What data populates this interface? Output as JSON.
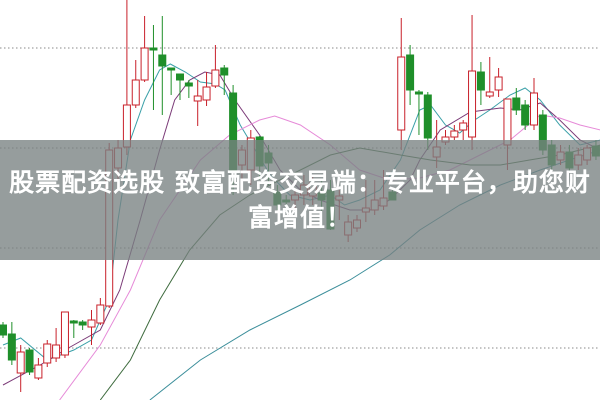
{
  "banner": {
    "title": "股票配资选股 致富配资交易端：专业平台，助您财富增值！"
  },
  "colors": {
    "up": "#c8202a",
    "down": "#1f8f2a",
    "grid": "#8a8a8a",
    "banner": "#7a8282"
  },
  "chart_data": {
    "type": "candlestick",
    "title": "",
    "xlabel": "",
    "ylabel": "",
    "grid": true,
    "legend": "none",
    "note_fields": "candles are [open, close, high, low]",
    "candles": [
      [
        7.5,
        6.5,
        7.8,
        6.2
      ],
      [
        6.6,
        4.0,
        7.8,
        3.5
      ],
      [
        2.7,
        4.8,
        5.5,
        0.8
      ],
      [
        5.0,
        2.8,
        5.2,
        2.5
      ],
      [
        2.2,
        3.5,
        4.2,
        2.0
      ],
      [
        3.7,
        5.6,
        6.0,
        3.3
      ],
      [
        4.2,
        5.5,
        7.2,
        3.8
      ],
      [
        4.5,
        8.8,
        8.8,
        4.2
      ],
      [
        7.9,
        7.7,
        8.0,
        6.2
      ],
      [
        7.8,
        7.5,
        8.0,
        7.0
      ],
      [
        7.3,
        8.0,
        9.0,
        5.5
      ],
      [
        7.7,
        9.5,
        10.2,
        7.5
      ],
      [
        9.4,
        25.0,
        25.7,
        9.2
      ],
      [
        23.2,
        25.2,
        26.0,
        22.0
      ],
      [
        25.3,
        29.5,
        40.0,
        24.5
      ],
      [
        29.5,
        32.0,
        34.0,
        29.2
      ],
      [
        32.0,
        35.2,
        38.4,
        31.8
      ],
      [
        35.2,
        35.0,
        37.5,
        29.0
      ],
      [
        34.5,
        33.4,
        38.4,
        28.5
      ],
      [
        33.2,
        33.0,
        33.2,
        30.5
      ],
      [
        32.6,
        32.0,
        32.6,
        30.0
      ],
      [
        31.7,
        31.4,
        32.0,
        30.2
      ],
      [
        29.9,
        30.4,
        32.0,
        27.4
      ],
      [
        30.0,
        31.3,
        32.8,
        29.4
      ],
      [
        31.4,
        33.0,
        35.5,
        31.2
      ],
      [
        33.2,
        32.5,
        33.5,
        30.5
      ],
      [
        30.7,
        23.0,
        31.5,
        20.5
      ],
      [
        23.5,
        25.0,
        25.5,
        21.0
      ],
      [
        23.0,
        26.2,
        27.0,
        21.5
      ],
      [
        26.3,
        23.4,
        26.4,
        22.0
      ],
      [
        24.7,
        23.7,
        25.5,
        21.5
      ],
      [
        20.8,
        19.5,
        21.5,
        19.0
      ],
      [
        20.0,
        19.8,
        20.5,
        19.0
      ],
      [
        20.0,
        20.5,
        21.0,
        19.0
      ],
      [
        20.5,
        21.5,
        22.5,
        19.5
      ],
      [
        20.4,
        21.7,
        22.5,
        19.5
      ],
      [
        20.7,
        20.0,
        22.0,
        18.0
      ],
      [
        21.0,
        17.1,
        22.0,
        17.0
      ],
      [
        20.0,
        20.4,
        21.0,
        18.0
      ],
      [
        16.5,
        17.8,
        18.5,
        15.8
      ],
      [
        17.2,
        18.0,
        18.5,
        16.8
      ],
      [
        18.8,
        19.2,
        22.0,
        17.8
      ],
      [
        19.0,
        20.0,
        22.0,
        18.5
      ],
      [
        19.4,
        20.2,
        23.0,
        19.0
      ],
      [
        20.8,
        20.0,
        21.0,
        20.0
      ],
      [
        27.0,
        34.3,
        38.2,
        25.0
      ],
      [
        34.5,
        31.0,
        35.5,
        29.5
      ],
      [
        30.8,
        30.6,
        31.0,
        26.5
      ],
      [
        30.5,
        26.2,
        30.8,
        25.0
      ],
      [
        24.3,
        25.3,
        28.0,
        23.2
      ],
      [
        25.8,
        26.3,
        27.0,
        25.5
      ],
      [
        26.3,
        26.9,
        27.5,
        26.0
      ],
      [
        27.0,
        27.7,
        28.0,
        26.0
      ],
      [
        26.3,
        32.9,
        38.5,
        25.0
      ],
      [
        32.8,
        31.0,
        33.8,
        29.5
      ],
      [
        30.4,
        30.8,
        34.3,
        30.2
      ],
      [
        31.0,
        32.3,
        33.2,
        30.3
      ],
      [
        25.5,
        30.1,
        30.1,
        23.0
      ],
      [
        30.2,
        29.0,
        31.2,
        28.5
      ],
      [
        29.5,
        27.5,
        30.0,
        27.0
      ],
      [
        27.5,
        30.7,
        32.2,
        27.0
      ],
      [
        28.5,
        25.0,
        29.0,
        24.5
      ],
      [
        25.5,
        23.5,
        26.0,
        23.0
      ],
      [
        24.0,
        24.8,
        25.5,
        23.5
      ],
      [
        24.8,
        23.2,
        25.5,
        22.8
      ],
      [
        23.5,
        24.5,
        25.2,
        23.0
      ],
      [
        24.0,
        25.2,
        25.5,
        23.5
      ],
      [
        25.4,
        24.4,
        26.0,
        24.0
      ]
    ],
    "moving_averages": [
      {
        "color": "#3aa0a8",
        "points": [
          [
            0,
            5.5
          ],
          [
            2,
            6.2
          ],
          [
            5,
            4.0
          ],
          [
            8,
            5.0
          ],
          [
            10,
            6.0
          ],
          [
            12,
            10.0
          ],
          [
            13,
            18.0
          ],
          [
            14.4,
            26.0
          ],
          [
            16,
            30.0
          ],
          [
            17.7,
            33.0
          ],
          [
            18.9,
            33.6
          ],
          [
            20.6,
            32.8
          ],
          [
            22.3,
            31.8
          ],
          [
            24,
            31.6
          ],
          [
            25.1,
            31.0
          ],
          [
            26.8,
            27.5
          ],
          [
            28.5,
            25.0
          ],
          [
            30.2,
            22.5
          ],
          [
            32.4,
            20.5
          ],
          [
            34.7,
            20.0
          ],
          [
            37,
            20.5
          ],
          [
            38.6,
            19.5
          ],
          [
            40.3,
            20.0
          ],
          [
            42.6,
            21.0
          ],
          [
            44.9,
            24.0
          ],
          [
            47.1,
            29.0
          ],
          [
            48.3,
            29.5
          ],
          [
            50,
            27.5
          ],
          [
            51.6,
            26.7
          ],
          [
            53.3,
            28.0
          ],
          [
            55,
            29.0
          ],
          [
            57.3,
            30.5
          ],
          [
            59,
            31.2
          ],
          [
            60.7,
            30.0
          ],
          [
            62.9,
            27.5
          ],
          [
            65.2,
            25.5
          ],
          [
            67.5,
            26.0
          ]
        ]
      },
      {
        "color": "#7b3b78",
        "points": [
          [
            0,
            1.5
          ],
          [
            4.2,
            3.5
          ],
          [
            7,
            5.0
          ],
          [
            11,
            7.0
          ],
          [
            13.2,
            11.0
          ],
          [
            15.5,
            18.0
          ],
          [
            17.7,
            25.0
          ],
          [
            19.4,
            30.0
          ],
          [
            21.1,
            32.0
          ],
          [
            22.8,
            32.8
          ],
          [
            24.5,
            32.5
          ],
          [
            26.2,
            30.0
          ],
          [
            29,
            26.5
          ],
          [
            31.3,
            23.0
          ],
          [
            33.6,
            21.0
          ],
          [
            35.8,
            20.0
          ],
          [
            39.2,
            19.0
          ],
          [
            41.5,
            19.0
          ],
          [
            43.7,
            20.0
          ],
          [
            46,
            22.0
          ],
          [
            47.1,
            24.0
          ],
          [
            49.4,
            27.0
          ],
          [
            52.8,
            28.8
          ],
          [
            56.2,
            29.2
          ],
          [
            58.4,
            29.0
          ],
          [
            60.7,
            29.7
          ],
          [
            62.9,
            28.0
          ],
          [
            65.2,
            26.0
          ],
          [
            67.5,
            25.0
          ]
        ]
      },
      {
        "color": "#e68ad8",
        "points": [
          [
            6.4,
            0
          ],
          [
            11,
            5.5
          ],
          [
            14.4,
            11
          ],
          [
            17.7,
            18
          ],
          [
            22.3,
            24
          ],
          [
            25.6,
            26.5
          ],
          [
            29,
            28
          ],
          [
            30.7,
            28.4
          ],
          [
            33.6,
            27.5
          ],
          [
            37,
            25.5
          ],
          [
            40.3,
            23
          ],
          [
            43.7,
            22
          ],
          [
            47.1,
            22.2
          ],
          [
            50.5,
            23
          ],
          [
            53.9,
            24.5
          ],
          [
            57.3,
            26
          ],
          [
            60.7,
            28.5
          ],
          [
            62.9,
            28.2
          ],
          [
            65.2,
            27.5
          ],
          [
            67.5,
            27
          ]
        ]
      },
      {
        "color": "#3e6b3e",
        "points": [
          [
            11,
            0
          ],
          [
            14.4,
            4
          ],
          [
            17.7,
            10
          ],
          [
            21.1,
            15
          ],
          [
            24.5,
            18.5
          ],
          [
            27.9,
            20.5
          ],
          [
            31.3,
            22
          ],
          [
            33.6,
            23
          ],
          [
            37,
            24.5
          ],
          [
            40.3,
            25.2
          ],
          [
            44.9,
            24.5
          ],
          [
            48.3,
            24
          ],
          [
            52.8,
            23.5
          ],
          [
            56.2,
            23.5
          ],
          [
            59.5,
            24
          ],
          [
            62.9,
            24.5
          ],
          [
            67.5,
            25.5
          ]
        ]
      },
      {
        "color": "#3b8e9a",
        "points": [
          [
            16.6,
            0
          ],
          [
            22.3,
            4
          ],
          [
            27.9,
            7
          ],
          [
            33.6,
            9.5
          ],
          [
            39.2,
            12
          ],
          [
            43.7,
            14.5
          ],
          [
            47.1,
            17
          ],
          [
            51.6,
            19.5
          ],
          [
            56.2,
            21.5
          ],
          [
            60.7,
            23
          ],
          [
            64,
            24
          ],
          [
            67.5,
            25
          ]
        ]
      }
    ],
    "gridlines": [
      35.2,
      25.2,
      15.2,
      5.2
    ],
    "ylim": [
      0,
      40
    ]
  }
}
